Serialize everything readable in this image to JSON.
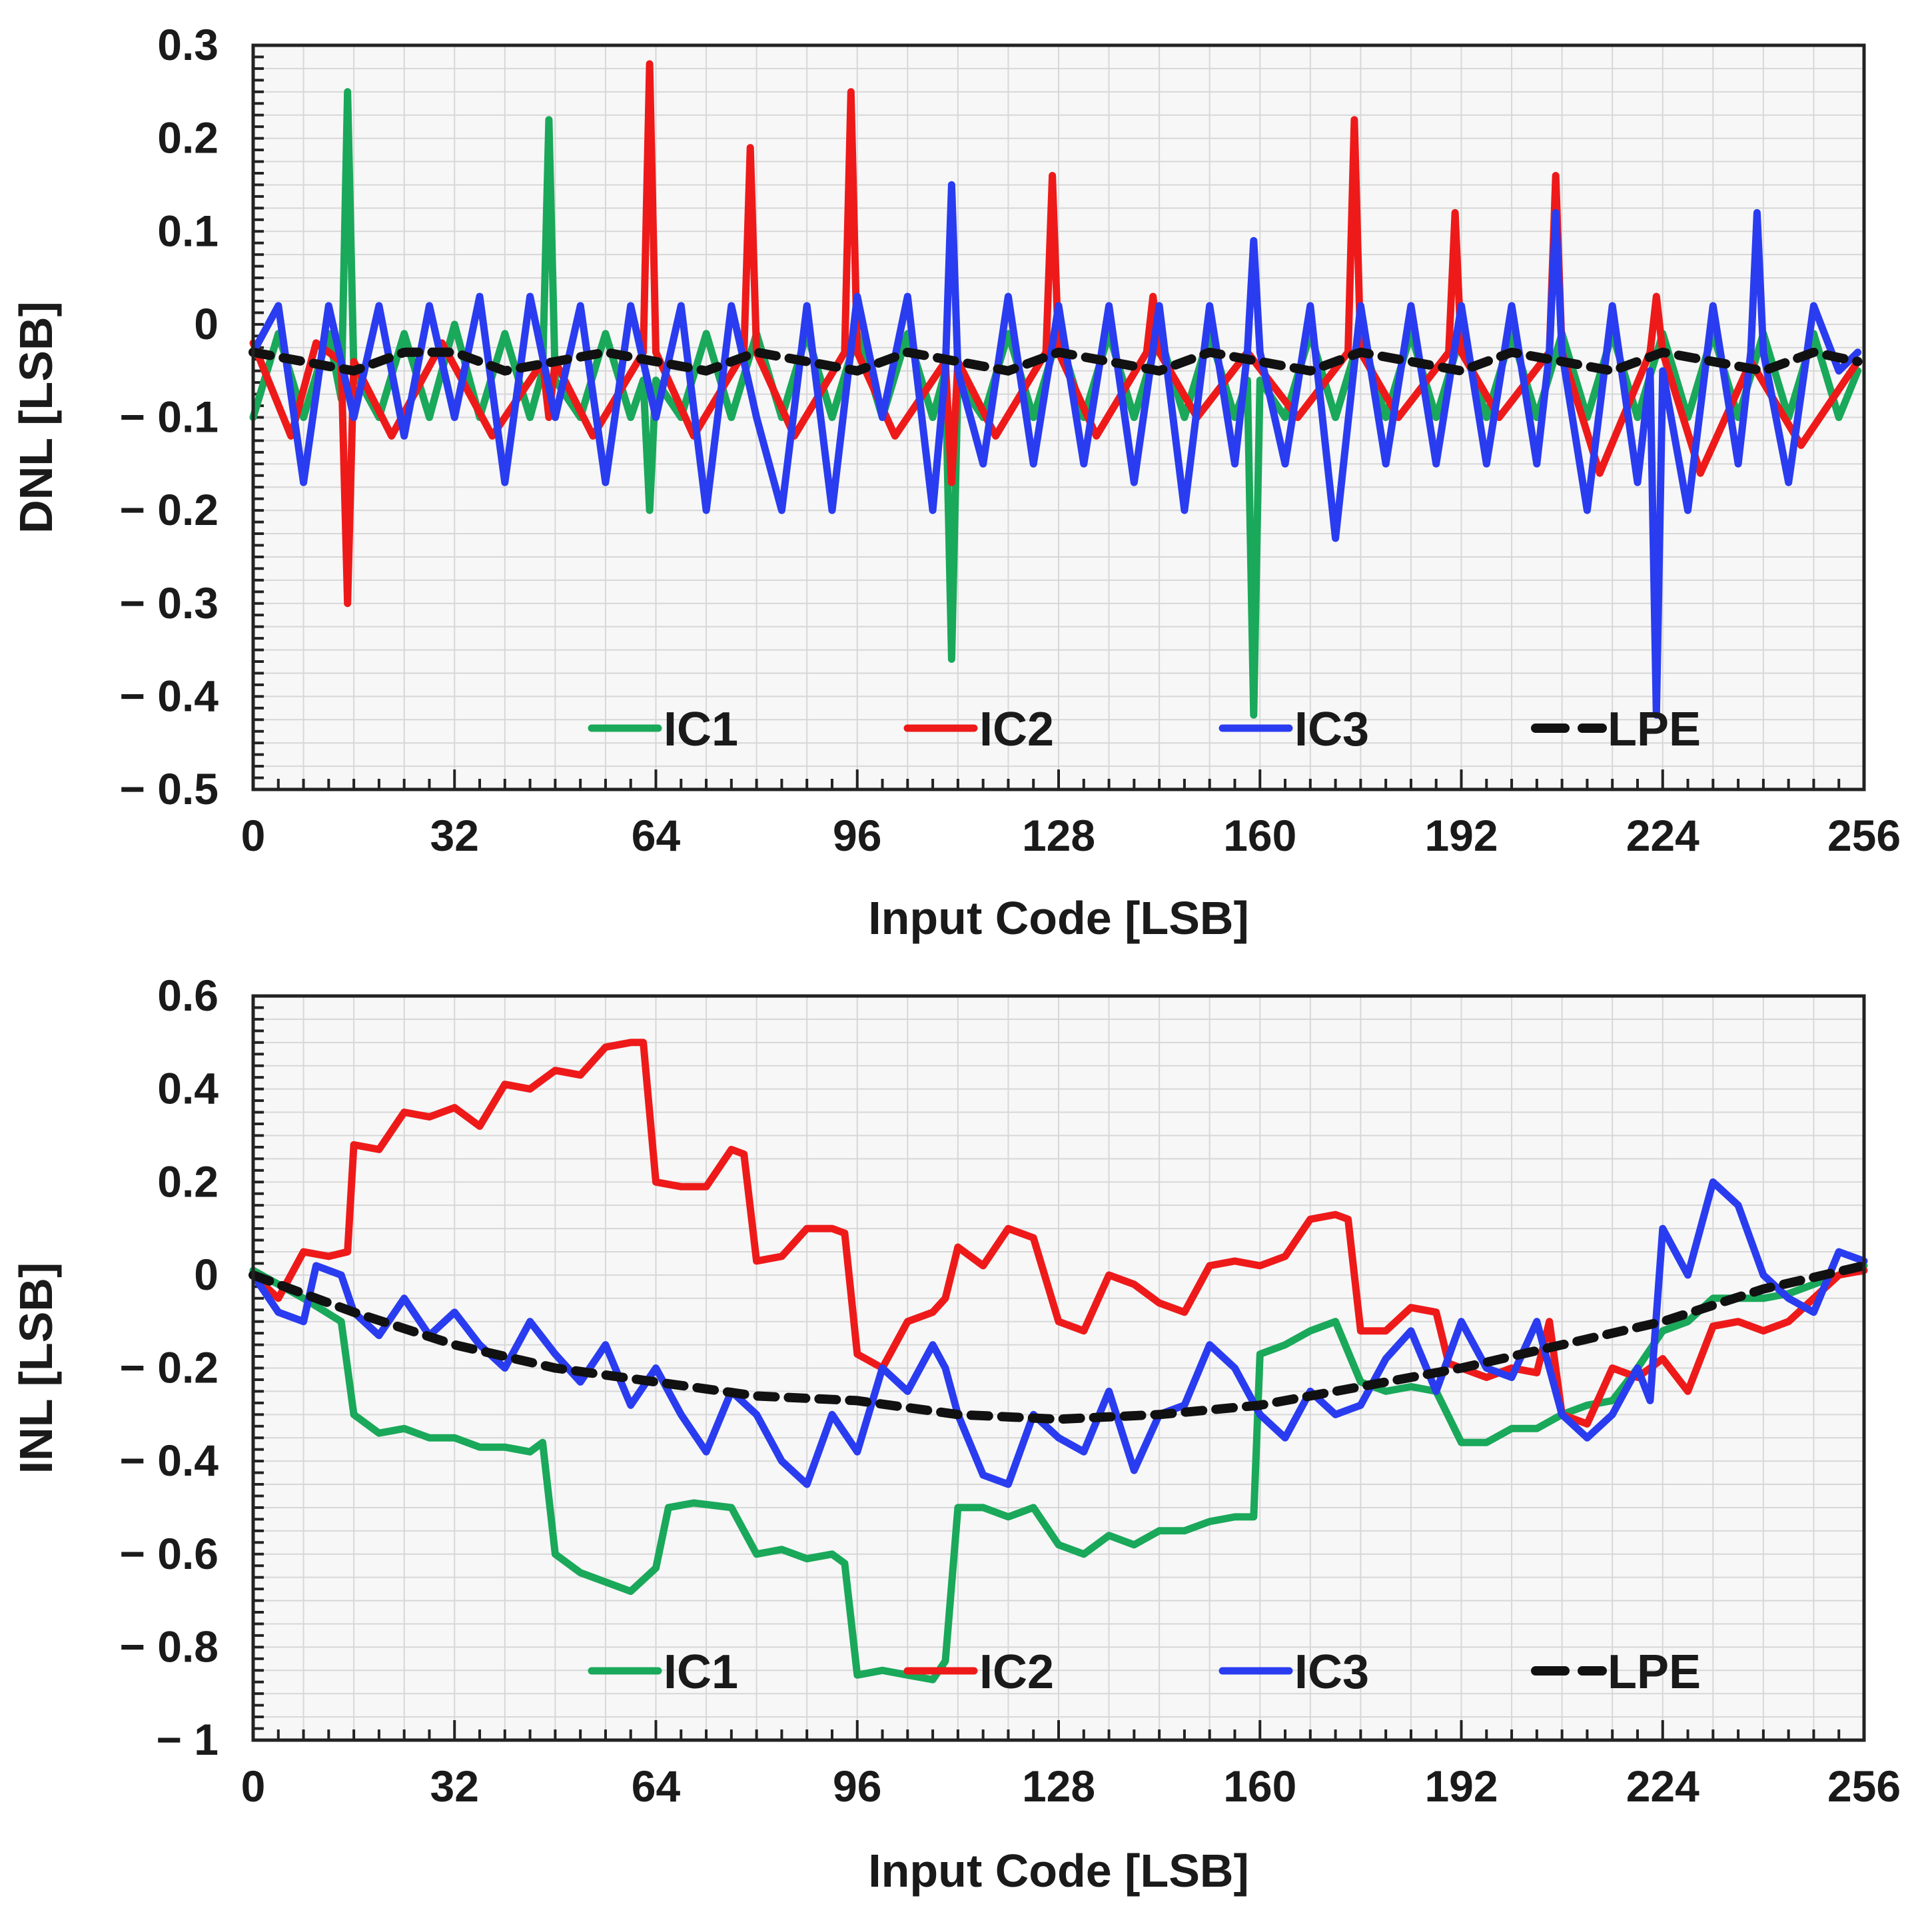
{
  "chart_data": [
    {
      "id": "dnl",
      "type": "line",
      "title": "",
      "xlabel": "Input Code [LSB]",
      "ylabel": "DNL [LSB]",
      "xlim": [
        0,
        256
      ],
      "ylim": [
        -0.5,
        0.3
      ],
      "xticks": [
        0,
        32,
        64,
        96,
        128,
        160,
        192,
        224,
        256
      ],
      "xtick_labels": [
        "0",
        "32",
        "64",
        "96",
        "128",
        "160",
        "192",
        "224",
        "256"
      ],
      "yticks": [
        -0.5,
        -0.4,
        -0.3,
        -0.2,
        -0.1,
        0,
        0.1,
        0.2,
        0.3
      ],
      "ytick_labels": [
        "− 0.5",
        "− 0.4",
        "− 0.3",
        "− 0.2",
        "− 0.1",
        "0",
        "0.1",
        "0.2",
        "0.3"
      ],
      "grid": true,
      "legend": "bottom, single row",
      "series": [
        {
          "name": "IC1",
          "label": "IC1",
          "color": "#1aa85a",
          "dash": "solid",
          "x": [
            0,
            4,
            8,
            12,
            14,
            15,
            16,
            20,
            24,
            28,
            32,
            36,
            40,
            44,
            46,
            47,
            48,
            52,
            56,
            60,
            62,
            63,
            64,
            68,
            72,
            76,
            80,
            84,
            88,
            92,
            96,
            100,
            104,
            108,
            110,
            111,
            112,
            116,
            120,
            124,
            128,
            132,
            136,
            140,
            144,
            148,
            152,
            156,
            158,
            159,
            160,
            164,
            168,
            172,
            176,
            180,
            184,
            188,
            192,
            196,
            200,
            204,
            208,
            212,
            216,
            220,
            224,
            228,
            232,
            236,
            240,
            244,
            248,
            252,
            255
          ],
          "y": [
            -0.1,
            -0.01,
            -0.1,
            -0.01,
            -0.08,
            0.25,
            -0.05,
            -0.1,
            -0.01,
            -0.1,
            0,
            -0.1,
            -0.01,
            -0.1,
            -0.05,
            0.22,
            -0.06,
            -0.1,
            -0.01,
            -0.1,
            -0.06,
            -0.2,
            -0.06,
            -0.1,
            -0.01,
            -0.1,
            -0.01,
            -0.1,
            -0.01,
            -0.1,
            -0.01,
            -0.1,
            -0.01,
            -0.1,
            -0.05,
            -0.36,
            -0.06,
            -0.1,
            -0.01,
            -0.1,
            -0.01,
            -0.1,
            -0.01,
            -0.1,
            -0.01,
            -0.1,
            -0.01,
            -0.1,
            -0.06,
            -0.42,
            -0.06,
            -0.1,
            -0.01,
            -0.1,
            -0.01,
            -0.1,
            -0.01,
            -0.1,
            -0.01,
            -0.1,
            -0.01,
            -0.1,
            -0.01,
            -0.1,
            -0.01,
            -0.1,
            -0.01,
            -0.1,
            -0.01,
            -0.1,
            -0.01,
            -0.1,
            -0.01,
            -0.1,
            -0.05
          ]
        },
        {
          "name": "IC2",
          "label": "IC2",
          "color": "#ee1a1a",
          "dash": "solid",
          "x": [
            0,
            6,
            10,
            14,
            15,
            16,
            22,
            30,
            38,
            46,
            47,
            48,
            54,
            62,
            63,
            64,
            70,
            78,
            79,
            80,
            86,
            94,
            95,
            96,
            102,
            110,
            111,
            112,
            118,
            126,
            127,
            128,
            134,
            142,
            143,
            144,
            150,
            158,
            166,
            174,
            175,
            176,
            182,
            190,
            191,
            192,
            198,
            206,
            207,
            208,
            214,
            222,
            223,
            224,
            230,
            238,
            246,
            255
          ],
          "y": [
            -0.02,
            -0.12,
            -0.02,
            -0.04,
            -0.3,
            -0.04,
            -0.12,
            -0.02,
            -0.12,
            -0.04,
            -0.1,
            -0.04,
            -0.12,
            -0.03,
            0.28,
            -0.03,
            -0.12,
            -0.03,
            0.19,
            -0.03,
            -0.12,
            -0.03,
            0.25,
            -0.03,
            -0.12,
            -0.04,
            -0.17,
            -0.04,
            -0.12,
            -0.03,
            0.16,
            -0.03,
            -0.12,
            -0.03,
            0.03,
            -0.03,
            -0.1,
            -0.03,
            -0.1,
            -0.03,
            0.22,
            -0.03,
            -0.1,
            -0.03,
            0.12,
            -0.03,
            -0.1,
            -0.03,
            0.16,
            -0.03,
            -0.16,
            -0.03,
            0.03,
            -0.03,
            -0.16,
            -0.04,
            -0.13,
            -0.04
          ]
        },
        {
          "name": "IC3",
          "label": "IC3",
          "color": "#2a3cf0",
          "dash": "solid",
          "x": [
            0,
            4,
            8,
            12,
            16,
            20,
            24,
            28,
            32,
            36,
            40,
            44,
            48,
            52,
            56,
            60,
            64,
            68,
            72,
            76,
            80,
            84,
            88,
            92,
            96,
            100,
            104,
            108,
            110,
            111,
            112,
            116,
            120,
            124,
            128,
            132,
            136,
            140,
            144,
            148,
            152,
            156,
            158,
            159,
            160,
            164,
            168,
            172,
            176,
            180,
            184,
            188,
            192,
            196,
            200,
            204,
            206,
            207,
            208,
            212,
            216,
            220,
            222,
            223,
            224,
            228,
            232,
            236,
            238,
            239,
            240,
            244,
            248,
            252,
            255
          ],
          "y": [
            -0.03,
            0.02,
            -0.17,
            0.02,
            -0.1,
            0.02,
            -0.12,
            0.02,
            -0.1,
            0.03,
            -0.17,
            0.03,
            -0.1,
            0.02,
            -0.17,
            0.02,
            -0.1,
            0.02,
            -0.2,
            0.02,
            -0.1,
            -0.2,
            0.02,
            -0.2,
            0.03,
            -0.1,
            0.03,
            -0.2,
            -0.05,
            0.15,
            -0.05,
            -0.15,
            0.03,
            -0.15,
            0.02,
            -0.15,
            0.02,
            -0.17,
            0.02,
            -0.2,
            0.02,
            -0.15,
            -0.03,
            0.09,
            -0.03,
            -0.15,
            0.02,
            -0.23,
            0.02,
            -0.15,
            0.02,
            -0.15,
            0.02,
            -0.15,
            0.02,
            -0.15,
            -0.03,
            0.12,
            -0.03,
            -0.2,
            0.02,
            -0.17,
            -0.05,
            -0.42,
            -0.05,
            -0.2,
            0.02,
            -0.15,
            -0.03,
            0.12,
            -0.03,
            -0.17,
            0.02,
            -0.05,
            -0.03
          ]
        },
        {
          "name": "LPE",
          "label": "LPE",
          "color": "#111111",
          "dash": "dashed",
          "x": [
            0,
            8,
            16,
            24,
            32,
            40,
            48,
            56,
            64,
            72,
            80,
            88,
            96,
            104,
            112,
            120,
            128,
            136,
            144,
            152,
            160,
            168,
            176,
            184,
            192,
            200,
            208,
            216,
            224,
            232,
            240,
            248,
            255
          ],
          "y": [
            -0.03,
            -0.04,
            -0.05,
            -0.03,
            -0.03,
            -0.05,
            -0.04,
            -0.03,
            -0.04,
            -0.05,
            -0.03,
            -0.04,
            -0.05,
            -0.03,
            -0.04,
            -0.05,
            -0.03,
            -0.04,
            -0.05,
            -0.03,
            -0.04,
            -0.05,
            -0.03,
            -0.04,
            -0.05,
            -0.03,
            -0.04,
            -0.05,
            -0.03,
            -0.04,
            -0.05,
            -0.03,
            -0.04
          ]
        }
      ]
    },
    {
      "id": "inl",
      "type": "line",
      "title": "",
      "xlabel": "Input Code [LSB]",
      "ylabel": "INL [LSB]",
      "xlim": [
        0,
        256
      ],
      "ylim": [
        -1,
        0.6
      ],
      "xticks": [
        0,
        32,
        64,
        96,
        128,
        160,
        192,
        224,
        256
      ],
      "xtick_labels": [
        "0",
        "32",
        "64",
        "96",
        "128",
        "160",
        "192",
        "224",
        "256"
      ],
      "yticks": [
        -1,
        -0.8,
        -0.6,
        -0.4,
        -0.2,
        0,
        0.2,
        0.4,
        0.6
      ],
      "ytick_labels": [
        "− 1",
        "− 0.8",
        "− 0.6",
        "− 0.4",
        "− 0.2",
        "0",
        "0.2",
        "0.4",
        "0.6"
      ],
      "grid": true,
      "legend": "bottom, single row",
      "series": [
        {
          "name": "IC1",
          "label": "IC1",
          "color": "#1aa85a",
          "dash": "solid",
          "x": [
            0,
            8,
            14,
            16,
            20,
            24,
            28,
            32,
            36,
            40,
            44,
            46,
            48,
            52,
            56,
            60,
            64,
            66,
            70,
            76,
            80,
            84,
            88,
            92,
            94,
            96,
            100,
            104,
            108,
            110,
            112,
            116,
            120,
            124,
            128,
            132,
            136,
            140,
            144,
            148,
            152,
            156,
            159,
            160,
            164,
            168,
            172,
            176,
            180,
            184,
            188,
            192,
            196,
            200,
            204,
            208,
            212,
            216,
            220,
            224,
            228,
            232,
            236,
            240,
            244,
            248,
            252,
            256
          ],
          "y": [
            0.01,
            -0.05,
            -0.1,
            -0.3,
            -0.34,
            -0.33,
            -0.35,
            -0.35,
            -0.37,
            -0.37,
            -0.38,
            -0.36,
            -0.6,
            -0.64,
            -0.66,
            -0.68,
            -0.63,
            -0.5,
            -0.49,
            -0.5,
            -0.6,
            -0.59,
            -0.61,
            -0.6,
            -0.62,
            -0.86,
            -0.85,
            -0.86,
            -0.87,
            -0.83,
            -0.5,
            -0.5,
            -0.52,
            -0.5,
            -0.58,
            -0.6,
            -0.56,
            -0.58,
            -0.55,
            -0.55,
            -0.53,
            -0.52,
            -0.52,
            -0.17,
            -0.15,
            -0.12,
            -0.1,
            -0.23,
            -0.25,
            -0.24,
            -0.25,
            -0.36,
            -0.36,
            -0.33,
            -0.33,
            -0.3,
            -0.28,
            -0.27,
            -0.2,
            -0.12,
            -0.1,
            -0.05,
            -0.05,
            -0.05,
            -0.04,
            -0.02,
            0,
            0.02
          ]
        },
        {
          "name": "IC2",
          "label": "IC2",
          "color": "#ee1a1a",
          "dash": "solid",
          "x": [
            0,
            4,
            8,
            12,
            15,
            16,
            20,
            24,
            28,
            32,
            36,
            40,
            44,
            48,
            52,
            56,
            60,
            62,
            64,
            68,
            72,
            76,
            78,
            80,
            84,
            88,
            92,
            94,
            96,
            100,
            104,
            108,
            110,
            112,
            116,
            120,
            124,
            128,
            132,
            136,
            140,
            144,
            148,
            152,
            156,
            160,
            164,
            168,
            172,
            174,
            176,
            180,
            184,
            188,
            190,
            192,
            196,
            200,
            204,
            206,
            208,
            212,
            216,
            220,
            224,
            228,
            232,
            236,
            240,
            244,
            248,
            252,
            256
          ],
          "y": [
            0,
            -0.05,
            0.05,
            0.04,
            0.05,
            0.28,
            0.27,
            0.35,
            0.34,
            0.36,
            0.32,
            0.41,
            0.4,
            0.44,
            0.43,
            0.49,
            0.5,
            0.5,
            0.2,
            0.19,
            0.19,
            0.27,
            0.26,
            0.03,
            0.04,
            0.1,
            0.1,
            0.09,
            -0.17,
            -0.2,
            -0.1,
            -0.08,
            -0.05,
            0.06,
            0.02,
            0.1,
            0.08,
            -0.1,
            -0.12,
            0,
            -0.02,
            -0.06,
            -0.08,
            0.02,
            0.03,
            0.02,
            0.04,
            0.12,
            0.13,
            0.12,
            -0.12,
            -0.12,
            -0.07,
            -0.08,
            -0.19,
            -0.2,
            -0.22,
            -0.2,
            -0.21,
            -0.1,
            -0.3,
            -0.32,
            -0.2,
            -0.22,
            -0.18,
            -0.25,
            -0.11,
            -0.1,
            -0.12,
            -0.1,
            -0.05,
            0,
            0.01
          ]
        },
        {
          "name": "IC3",
          "label": "IC3",
          "color": "#2a3cf0",
          "dash": "solid",
          "x": [
            0,
            4,
            8,
            10,
            14,
            16,
            20,
            24,
            28,
            32,
            36,
            40,
            44,
            48,
            52,
            56,
            60,
            64,
            68,
            72,
            76,
            80,
            84,
            88,
            92,
            96,
            100,
            104,
            108,
            110,
            112,
            116,
            120,
            124,
            128,
            132,
            136,
            140,
            144,
            148,
            152,
            156,
            160,
            164,
            168,
            172,
            176,
            180,
            184,
            188,
            192,
            196,
            200,
            204,
            208,
            212,
            216,
            220,
            222,
            224,
            228,
            232,
            236,
            240,
            244,
            248,
            252,
            256
          ],
          "y": [
            0,
            -0.08,
            -0.1,
            0.02,
            0,
            -0.08,
            -0.13,
            -0.05,
            -0.13,
            -0.08,
            -0.15,
            -0.2,
            -0.1,
            -0.17,
            -0.23,
            -0.15,
            -0.28,
            -0.2,
            -0.3,
            -0.38,
            -0.25,
            -0.3,
            -0.4,
            -0.45,
            -0.3,
            -0.38,
            -0.2,
            -0.25,
            -0.15,
            -0.2,
            -0.3,
            -0.43,
            -0.45,
            -0.3,
            -0.35,
            -0.38,
            -0.25,
            -0.42,
            -0.3,
            -0.28,
            -0.15,
            -0.2,
            -0.3,
            -0.35,
            -0.25,
            -0.3,
            -0.28,
            -0.18,
            -0.12,
            -0.25,
            -0.1,
            -0.2,
            -0.22,
            -0.1,
            -0.3,
            -0.35,
            -0.3,
            -0.2,
            -0.27,
            0.1,
            0,
            0.2,
            0.15,
            0,
            -0.05,
            -0.08,
            0.05,
            0.03
          ]
        },
        {
          "name": "LPE",
          "label": "LPE",
          "color": "#111111",
          "dash": "dashed",
          "x": [
            0,
            16,
            32,
            48,
            64,
            80,
            96,
            112,
            128,
            144,
            160,
            176,
            192,
            208,
            224,
            240,
            256
          ],
          "y": [
            0,
            -0.08,
            -0.15,
            -0.2,
            -0.23,
            -0.26,
            -0.27,
            -0.3,
            -0.31,
            -0.3,
            -0.28,
            -0.24,
            -0.2,
            -0.15,
            -0.1,
            -0.03,
            0.02
          ]
        }
      ]
    }
  ]
}
